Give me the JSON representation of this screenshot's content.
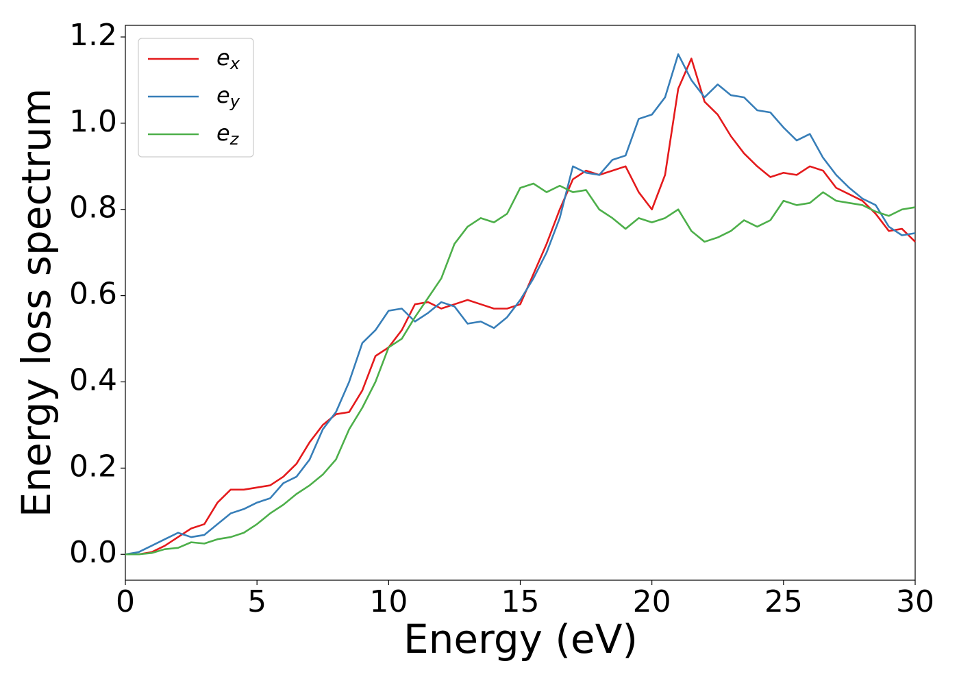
{
  "chart_data": {
    "type": "line",
    "xlabel": "Energy (eV)",
    "ylabel": "Energy loss spectrum",
    "x": [
      0,
      0.5,
      1,
      1.5,
      2,
      2.5,
      3,
      3.5,
      4,
      4.5,
      5,
      5.5,
      6,
      6.5,
      7,
      7.5,
      8,
      8.5,
      9,
      9.5,
      10,
      10.5,
      11,
      11.5,
      12,
      12.5,
      13,
      13.5,
      14,
      14.5,
      15,
      15.5,
      16,
      16.5,
      17,
      17.5,
      18,
      18.5,
      19,
      19.5,
      20,
      20.5,
      21,
      21.5,
      22,
      22.5,
      23,
      23.5,
      24,
      24.5,
      25,
      25.5,
      26,
      26.5,
      27,
      27.5,
      28,
      28.5,
      29,
      29.5,
      30
    ],
    "series": [
      {
        "name": "ex",
        "color": "#e41a1c",
        "values": [
          0,
          0,
          0.005,
          0.02,
          0.04,
          0.06,
          0.07,
          0.12,
          0.15,
          0.15,
          0.155,
          0.16,
          0.18,
          0.21,
          0.26,
          0.3,
          0.325,
          0.33,
          0.38,
          0.46,
          0.48,
          0.52,
          0.58,
          0.585,
          0.57,
          0.58,
          0.59,
          0.58,
          0.57,
          0.57,
          0.58,
          0.65,
          0.72,
          0.8,
          0.87,
          0.89,
          0.88,
          0.89,
          0.9,
          0.84,
          0.8,
          0.88,
          1.08,
          1.15,
          1.05,
          1.02,
          0.97,
          0.93,
          0.9,
          0.875,
          0.885,
          0.88,
          0.9,
          0.89,
          0.85,
          0.835,
          0.82,
          0.79,
          0.75,
          0.755,
          0.725
        ]
      },
      {
        "name": "ey",
        "color": "#377eb8",
        "values": [
          0,
          0.005,
          0.02,
          0.035,
          0.05,
          0.04,
          0.045,
          0.07,
          0.095,
          0.105,
          0.12,
          0.13,
          0.165,
          0.18,
          0.22,
          0.29,
          0.33,
          0.4,
          0.49,
          0.52,
          0.565,
          0.57,
          0.54,
          0.56,
          0.585,
          0.575,
          0.535,
          0.54,
          0.525,
          0.55,
          0.59,
          0.64,
          0.7,
          0.78,
          0.9,
          0.885,
          0.88,
          0.915,
          0.925,
          1.01,
          1.02,
          1.06,
          1.16,
          1.1,
          1.06,
          1.09,
          1.065,
          1.06,
          1.03,
          1.025,
          0.99,
          0.96,
          0.975,
          0.92,
          0.88,
          0.85,
          0.825,
          0.81,
          0.76,
          0.74,
          0.745
        ]
      },
      {
        "name": "ez",
        "color": "#4daf4a",
        "values": [
          0,
          0,
          0.003,
          0.012,
          0.015,
          0.028,
          0.025,
          0.035,
          0.04,
          0.05,
          0.07,
          0.095,
          0.115,
          0.14,
          0.16,
          0.185,
          0.22,
          0.29,
          0.34,
          0.4,
          0.48,
          0.5,
          0.55,
          0.595,
          0.64,
          0.72,
          0.76,
          0.78,
          0.77,
          0.79,
          0.85,
          0.86,
          0.84,
          0.855,
          0.84,
          0.845,
          0.8,
          0.78,
          0.755,
          0.78,
          0.77,
          0.78,
          0.8,
          0.75,
          0.725,
          0.735,
          0.75,
          0.775,
          0.76,
          0.775,
          0.82,
          0.81,
          0.815,
          0.84,
          0.82,
          0.815,
          0.81,
          0.795,
          0.785,
          0.8,
          0.805
        ]
      }
    ],
    "xlim": [
      0,
      30
    ],
    "xticks": [
      0,
      5,
      10,
      15,
      20,
      25,
      30
    ],
    "ylim": [
      -0.06,
      1.227
    ],
    "yticks": [
      {
        "value": 0,
        "label": "0.0"
      },
      0.2,
      0.4,
      0.6,
      0.8,
      {
        "value": 1,
        "label": "1.0"
      },
      1.2
    ],
    "legend": "upper left"
  }
}
